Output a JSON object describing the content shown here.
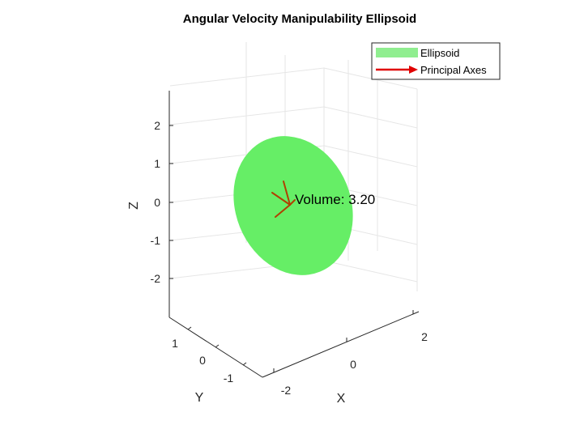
{
  "chart_data": {
    "type": "ellipsoid-3d",
    "title": "Angular Velocity Manipulability Ellipsoid",
    "xlabel": "X",
    "ylabel": "Y",
    "zlabel": "Z",
    "x_ticks": [
      "-2",
      "0",
      "2"
    ],
    "y_ticks": [
      "-1",
      "0",
      "1"
    ],
    "z_ticks": [
      "-2",
      "-1",
      "0",
      "1",
      "2"
    ],
    "grid": true,
    "legend_position": "top-right",
    "series": [
      {
        "name": "Ellipsoid",
        "color": "#90ee90"
      },
      {
        "name": "Principal Axes",
        "color": "#e00000"
      }
    ],
    "annotation": "Volume: 3.20",
    "principal_axes_color": "#b04000",
    "ellipsoid_color": "#66ee66"
  }
}
